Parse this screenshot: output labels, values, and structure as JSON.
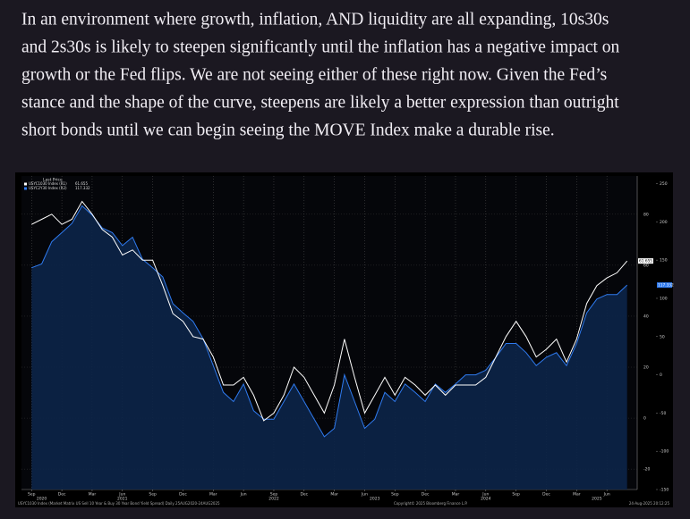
{
  "paragraph": [
    "In an environment where growth, inflation, AND liquidity are all expanding, 10s30s",
    "and 2s30s is likely to steepen significantly until the inflation has a negative impact on",
    "growth or the Fed flips. We are not seeing either of these right now. Given the Fed’s",
    "stance and the shape of the curve, steepens are likely a better expression than outright",
    "short bonds until we can begin seeing the MOVE Index make a durable rise."
  ],
  "chart_data": {
    "type": "line",
    "legend_title": "Last Price",
    "x": [
      "2020-09",
      "2020-10",
      "2020-11",
      "2020-12",
      "2021-01",
      "2021-02",
      "2021-03",
      "2021-04",
      "2021-05",
      "2021-06",
      "2021-07",
      "2021-08",
      "2021-09",
      "2021-10",
      "2021-11",
      "2021-12",
      "2022-01",
      "2022-02",
      "2022-03",
      "2022-04",
      "2022-05",
      "2022-06",
      "2022-07",
      "2022-08",
      "2022-09",
      "2022-10",
      "2022-11",
      "2022-12",
      "2023-01",
      "2023-02",
      "2023-03",
      "2023-04",
      "2023-05",
      "2023-06",
      "2023-07",
      "2023-08",
      "2023-09",
      "2023-10",
      "2023-11",
      "2023-12",
      "2024-01",
      "2024-02",
      "2024-03",
      "2024-04",
      "2024-05",
      "2024-06",
      "2024-07",
      "2024-08",
      "2024-09",
      "2024-10",
      "2024-11",
      "2024-12",
      "2025-01",
      "2025-02",
      "2025-03",
      "2025-04",
      "2025-05",
      "2025-06",
      "2025-07",
      "2025-08"
    ],
    "series": [
      {
        "name": "USYC1030 Index (R1)",
        "last_label": "61.655",
        "color": "#ffffff",
        "axis": "y",
        "values": [
          76,
          78,
          80,
          76,
          78,
          85,
          80,
          74,
          71,
          64,
          66,
          62,
          62,
          52,
          41,
          38,
          32,
          31,
          24,
          13,
          13,
          16,
          9,
          -1,
          2,
          9,
          20,
          16,
          9,
          2,
          13,
          31,
          16,
          2,
          9,
          16,
          9,
          16,
          13,
          9,
          13,
          9,
          13,
          13,
          13,
          16,
          24,
          32,
          38,
          32,
          24,
          27,
          31,
          22,
          31,
          45,
          52,
          55,
          57,
          61.655
        ]
      },
      {
        "name": "USYC2Y30 Index (R2)",
        "last_label": "117.332",
        "color": "#2f7bf0",
        "axis": "y2",
        "area": true,
        "values": [
          140,
          145,
          174,
          186,
          198,
          221,
          209,
          192,
          186,
          169,
          180,
          151,
          140,
          128,
          93,
          81,
          70,
          47,
          12,
          -23,
          -35,
          -12,
          -47,
          -58,
          -58,
          -35,
          -12,
          -35,
          -58,
          -81,
          -70,
          0,
          -35,
          -70,
          -58,
          -23,
          -35,
          -12,
          -23,
          -35,
          -12,
          -23,
          -12,
          0,
          0,
          6,
          23,
          41,
          41,
          29,
          12,
          23,
          29,
          12,
          41,
          81,
          99,
          105,
          105,
          117.332
        ]
      }
    ],
    "xlim": [
      "2020-08",
      "2025-09"
    ],
    "xticks": [
      {
        "value": "2020-09",
        "label": "Sep"
      },
      {
        "value": "2020-12",
        "label": "Dec"
      },
      {
        "value": "2021-03",
        "label": "Mar"
      },
      {
        "value": "2021-06",
        "label": "Jun"
      },
      {
        "value": "2021-09",
        "label": "Sep"
      },
      {
        "value": "2021-12",
        "label": "Dec"
      },
      {
        "value": "2022-03",
        "label": "Mar"
      },
      {
        "value": "2022-06",
        "label": "Jun"
      },
      {
        "value": "2022-09",
        "label": "Sep"
      },
      {
        "value": "2022-12",
        "label": "Dec"
      },
      {
        "value": "2023-03",
        "label": "Mar"
      },
      {
        "value": "2023-06",
        "label": "Jun"
      },
      {
        "value": "2023-09",
        "label": "Sep"
      },
      {
        "value": "2023-12",
        "label": "Dec"
      },
      {
        "value": "2024-03",
        "label": "Mar"
      },
      {
        "value": "2024-06",
        "label": "Jun"
      },
      {
        "value": "2024-09",
        "label": "Sep"
      },
      {
        "value": "2024-12",
        "label": "Dec"
      },
      {
        "value": "2025-03",
        "label": "Mar"
      },
      {
        "value": "2025-06",
        "label": "Jun"
      }
    ],
    "year_labels": [
      {
        "value": "2020-10",
        "label": "2020"
      },
      {
        "value": "2021-06",
        "label": "2021"
      },
      {
        "value": "2022-09",
        "label": "2022"
      },
      {
        "value": "2023-07",
        "label": "2023"
      },
      {
        "value": "2024-06",
        "label": "2024"
      },
      {
        "value": "2025-05",
        "label": "2025"
      }
    ],
    "ylim": [
      -28,
      95
    ],
    "yticks": [
      80,
      60,
      40,
      20,
      0,
      -20
    ],
    "y2lim": [
      -150,
      260
    ],
    "y2ticks": [
      250,
      200,
      150,
      100,
      50,
      0,
      -50,
      -100,
      -150
    ],
    "grid": true,
    "footer_left": "USYC1030 Index (Market Matrix US Sell 10 Year & Buy 30 Year Bond Yield Spread) Daily 25AUG2020-24AUG2025",
    "footer_center": "Copyright© 2025 Bloomberg Finance L.P.",
    "footer_right": "24-Aug-2025 20:12:25"
  }
}
